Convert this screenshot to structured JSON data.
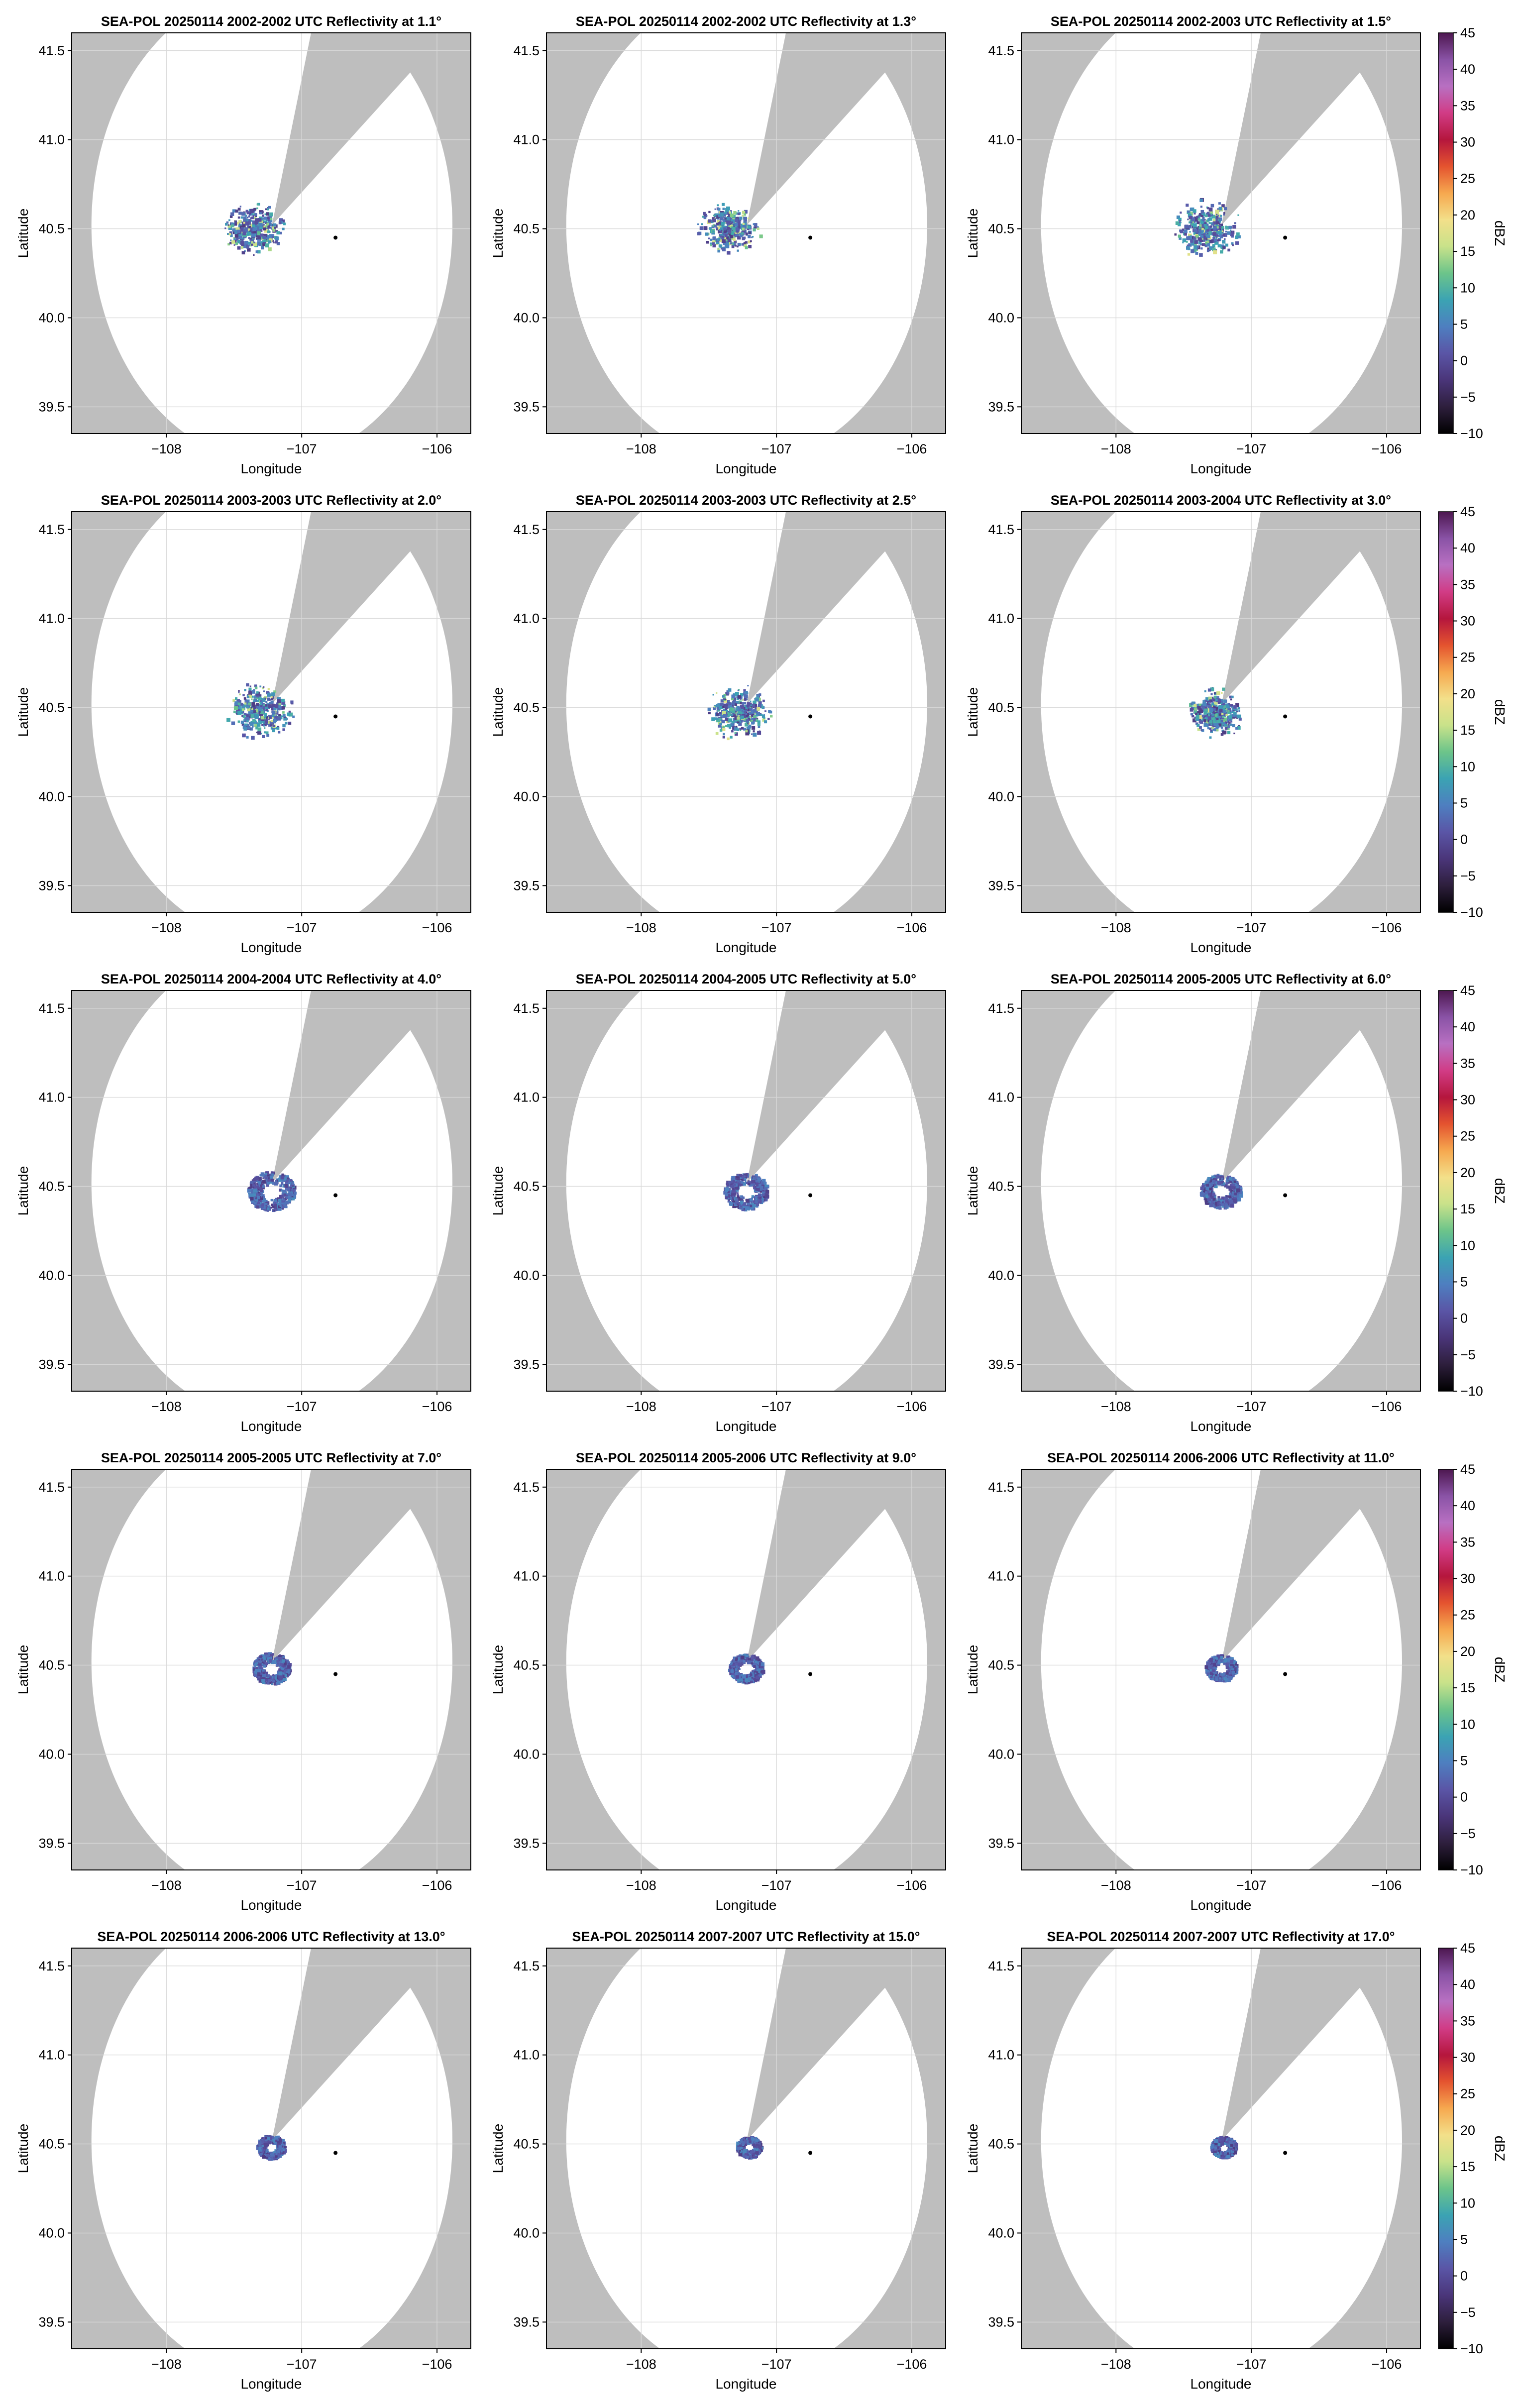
{
  "figure": {
    "colormap": {
      "label": "dBZ",
      "vmin": -10,
      "vmax": 45,
      "ticks": [
        -10,
        -5,
        0,
        5,
        10,
        15,
        20,
        25,
        30,
        35,
        40,
        45
      ],
      "stops": [
        "#000000",
        "#2e1f3d",
        "#4a3579",
        "#5a55a6",
        "#4e7fc0",
        "#3ba3b3",
        "#6cc48a",
        "#c9e28a",
        "#f3e08a",
        "#f6a84f",
        "#e4532f",
        "#b5163d",
        "#d13c86",
        "#b870c2",
        "#8a53a6",
        "#4d1750"
      ]
    },
    "colors": {
      "background_gray": "#bebebe",
      "coverage_white": "#ffffff",
      "grid": "#d9d9d9",
      "echo_main": "#5a4fa3",
      "echo_light": "#4a7fc4",
      "echo_teal": "#3aa4a4"
    }
  },
  "chart_data": [
    {
      "type": "heatmap",
      "title": "SEA-POL 20250114 2002-2002 UTC Reflectivity at 1.1°",
      "xlabel": "Longitude",
      "ylabel": "Latitude",
      "xlim": [
        -108.7,
        -105.75
      ],
      "ylim": [
        39.35,
        41.6
      ],
      "xticks": [
        -108,
        -107,
        -106
      ],
      "xtick_labels": [
        "−108",
        "−107",
        "−106"
      ],
      "yticks": [
        39.5,
        40.0,
        40.5,
        41.0,
        41.5
      ],
      "ytick_labels": [
        "39.5",
        "40.0",
        "40.5",
        "41.0",
        "41.5"
      ],
      "grid": true,
      "radar_center": [
        -107.22,
        40.52
      ],
      "coverage_radius_deg": 1.45,
      "blocked_sector_bearing_deg": [
        15,
        50
      ],
      "marker_point": [
        -106.75,
        40.45
      ],
      "echo": {
        "center": [
          -107.35,
          40.5
        ],
        "radius_deg": 0.18,
        "type": "scattered"
      },
      "colorbar": false
    },
    {
      "type": "heatmap",
      "title": "SEA-POL 20250114 2002-2002 UTC Reflectivity at 1.3°",
      "xlabel": "Longitude",
      "ylabel": "Latitude",
      "xlim": [
        -108.7,
        -105.75
      ],
      "ylim": [
        39.35,
        41.6
      ],
      "xticks": [
        -108,
        -107,
        -106
      ],
      "xtick_labels": [
        "−108",
        "−107",
        "−106"
      ],
      "yticks": [
        39.5,
        40.0,
        40.5,
        41.0,
        41.5
      ],
      "ytick_labels": [
        "39.5",
        "40.0",
        "40.5",
        "41.0",
        "41.5"
      ],
      "grid": true,
      "radar_center": [
        -107.22,
        40.52
      ],
      "coverage_radius_deg": 1.45,
      "blocked_sector_bearing_deg": [
        15,
        50
      ],
      "marker_point": [
        -106.75,
        40.45
      ],
      "echo": {
        "center": [
          -107.35,
          40.5
        ],
        "radius_deg": 0.18,
        "type": "scattered"
      },
      "colorbar": false
    },
    {
      "type": "heatmap",
      "title": "SEA-POL 20250114 2002-2003 UTC Reflectivity at 1.5°",
      "xlabel": "Longitude",
      "ylabel": "Latitude",
      "xlim": [
        -108.7,
        -105.75
      ],
      "ylim": [
        39.35,
        41.6
      ],
      "xticks": [
        -108,
        -107,
        -106
      ],
      "xtick_labels": [
        "−108",
        "−107",
        "−106"
      ],
      "yticks": [
        39.5,
        40.0,
        40.5,
        41.0,
        41.5
      ],
      "ytick_labels": [
        "39.5",
        "40.0",
        "40.5",
        "41.0",
        "41.5"
      ],
      "grid": true,
      "radar_center": [
        -107.22,
        40.52
      ],
      "coverage_radius_deg": 1.45,
      "blocked_sector_bearing_deg": [
        15,
        50
      ],
      "marker_point": [
        -106.75,
        40.45
      ],
      "echo": {
        "center": [
          -107.33,
          40.5
        ],
        "radius_deg": 0.2,
        "type": "scattered"
      },
      "colorbar": true
    },
    {
      "type": "heatmap",
      "title": "SEA-POL 20250114 2003-2003 UTC Reflectivity at 2.0°",
      "xlabel": "Longitude",
      "ylabel": "Latitude",
      "xlim": [
        -108.7,
        -105.75
      ],
      "ylim": [
        39.35,
        41.6
      ],
      "xticks": [
        -108,
        -107,
        -106
      ],
      "xtick_labels": [
        "−108",
        "−107",
        "−106"
      ],
      "yticks": [
        39.5,
        40.0,
        40.5,
        41.0,
        41.5
      ],
      "ytick_labels": [
        "39.5",
        "40.0",
        "40.5",
        "41.0",
        "41.5"
      ],
      "grid": true,
      "radar_center": [
        -107.22,
        40.52
      ],
      "coverage_radius_deg": 1.45,
      "blocked_sector_bearing_deg": [
        15,
        50
      ],
      "marker_point": [
        -106.75,
        40.45
      ],
      "echo": {
        "center": [
          -107.3,
          40.48
        ],
        "radius_deg": 0.2,
        "type": "scattered"
      },
      "colorbar": false
    },
    {
      "type": "heatmap",
      "title": "SEA-POL 20250114 2003-2003 UTC Reflectivity at 2.5°",
      "xlabel": "Longitude",
      "ylabel": "Latitude",
      "xlim": [
        -108.7,
        -105.75
      ],
      "ylim": [
        39.35,
        41.6
      ],
      "xticks": [
        -108,
        -107,
        -106
      ],
      "xtick_labels": [
        "−108",
        "−107",
        "−106"
      ],
      "yticks": [
        39.5,
        40.0,
        40.5,
        41.0,
        41.5
      ],
      "ytick_labels": [
        "39.5",
        "40.0",
        "40.5",
        "41.0",
        "41.5"
      ],
      "grid": true,
      "radar_center": [
        -107.22,
        40.52
      ],
      "coverage_radius_deg": 1.45,
      "blocked_sector_bearing_deg": [
        15,
        50
      ],
      "marker_point": [
        -106.75,
        40.45
      ],
      "echo": {
        "center": [
          -107.28,
          40.47
        ],
        "radius_deg": 0.19,
        "type": "scattered"
      },
      "colorbar": false
    },
    {
      "type": "heatmap",
      "title": "SEA-POL 20250114 2003-2004 UTC Reflectivity at 3.0°",
      "xlabel": "Longitude",
      "ylabel": "Latitude",
      "xlim": [
        -108.7,
        -105.75
      ],
      "ylim": [
        39.35,
        41.6
      ],
      "xticks": [
        -108,
        -107,
        -106
      ],
      "xtick_labels": [
        "−108",
        "−107",
        "−106"
      ],
      "yticks": [
        39.5,
        40.0,
        40.5,
        41.0,
        41.5
      ],
      "ytick_labels": [
        "39.5",
        "40.0",
        "40.5",
        "41.0",
        "41.5"
      ],
      "grid": true,
      "radar_center": [
        -107.22,
        40.52
      ],
      "coverage_radius_deg": 1.45,
      "blocked_sector_bearing_deg": [
        15,
        50
      ],
      "marker_point": [
        -106.75,
        40.45
      ],
      "echo": {
        "center": [
          -107.26,
          40.47
        ],
        "radius_deg": 0.17,
        "type": "scattered"
      },
      "colorbar": true
    },
    {
      "type": "heatmap",
      "title": "SEA-POL 20250114 2004-2004 UTC Reflectivity at 4.0°",
      "xlabel": "Longitude",
      "ylabel": "Latitude",
      "xlim": [
        -108.7,
        -105.75
      ],
      "ylim": [
        39.35,
        41.6
      ],
      "xticks": [
        -108,
        -107,
        -106
      ],
      "xtick_labels": [
        "−108",
        "−107",
        "−106"
      ],
      "yticks": [
        39.5,
        40.0,
        40.5,
        41.0,
        41.5
      ],
      "ytick_labels": [
        "39.5",
        "40.0",
        "40.5",
        "41.0",
        "41.5"
      ],
      "grid": true,
      "radar_center": [
        -107.22,
        40.52
      ],
      "coverage_radius_deg": 1.45,
      "blocked_sector_bearing_deg": [
        15,
        50
      ],
      "marker_point": [
        -106.75,
        40.45
      ],
      "echo": {
        "center": [
          -107.22,
          40.47
        ],
        "radius_deg": 0.15,
        "type": "ring"
      },
      "colorbar": false
    },
    {
      "type": "heatmap",
      "title": "SEA-POL 20250114 2004-2005 UTC Reflectivity at 5.0°",
      "xlabel": "Longitude",
      "ylabel": "Latitude",
      "xlim": [
        -108.7,
        -105.75
      ],
      "ylim": [
        39.35,
        41.6
      ],
      "xticks": [
        -108,
        -107,
        -106
      ],
      "xtick_labels": [
        "−108",
        "−107",
        "−106"
      ],
      "yticks": [
        39.5,
        40.0,
        40.5,
        41.0,
        41.5
      ],
      "ytick_labels": [
        "39.5",
        "40.0",
        "40.5",
        "41.0",
        "41.5"
      ],
      "grid": true,
      "radar_center": [
        -107.22,
        40.52
      ],
      "coverage_radius_deg": 1.45,
      "blocked_sector_bearing_deg": [
        15,
        50
      ],
      "marker_point": [
        -106.75,
        40.45
      ],
      "echo": {
        "center": [
          -107.22,
          40.47
        ],
        "radius_deg": 0.14,
        "type": "ring"
      },
      "colorbar": false
    },
    {
      "type": "heatmap",
      "title": "SEA-POL 20250114 2005-2005 UTC Reflectivity at 6.0°",
      "xlabel": "Longitude",
      "ylabel": "Latitude",
      "xlim": [
        -108.7,
        -105.75
      ],
      "ylim": [
        39.35,
        41.6
      ],
      "xticks": [
        -108,
        -107,
        -106
      ],
      "xtick_labels": [
        "−108",
        "−107",
        "−106"
      ],
      "yticks": [
        39.5,
        40.0,
        40.5,
        41.0,
        41.5
      ],
      "ytick_labels": [
        "39.5",
        "40.0",
        "40.5",
        "41.0",
        "41.5"
      ],
      "grid": true,
      "radar_center": [
        -107.22,
        40.52
      ],
      "coverage_radius_deg": 1.45,
      "blocked_sector_bearing_deg": [
        15,
        50
      ],
      "marker_point": [
        -106.75,
        40.45
      ],
      "echo": {
        "center": [
          -107.22,
          40.47
        ],
        "radius_deg": 0.13,
        "type": "ring"
      },
      "colorbar": true
    },
    {
      "type": "heatmap",
      "title": "SEA-POL 20250114 2005-2005 UTC Reflectivity at 7.0°",
      "xlabel": "Longitude",
      "ylabel": "Latitude",
      "xlim": [
        -108.7,
        -105.75
      ],
      "ylim": [
        39.35,
        41.6
      ],
      "xticks": [
        -108,
        -107,
        -106
      ],
      "xtick_labels": [
        "−108",
        "−107",
        "−106"
      ],
      "yticks": [
        39.5,
        40.0,
        40.5,
        41.0,
        41.5
      ],
      "ytick_labels": [
        "39.5",
        "40.0",
        "40.5",
        "41.0",
        "41.5"
      ],
      "grid": true,
      "radar_center": [
        -107.22,
        40.52
      ],
      "coverage_radius_deg": 1.45,
      "blocked_sector_bearing_deg": [
        15,
        50
      ],
      "marker_point": [
        -106.75,
        40.45
      ],
      "echo": {
        "center": [
          -107.22,
          40.48
        ],
        "radius_deg": 0.12,
        "type": "ring"
      },
      "colorbar": false
    },
    {
      "type": "heatmap",
      "title": "SEA-POL 20250114 2005-2006 UTC Reflectivity at 9.0°",
      "xlabel": "Longitude",
      "ylabel": "Latitude",
      "xlim": [
        -108.7,
        -105.75
      ],
      "ylim": [
        39.35,
        41.6
      ],
      "xticks": [
        -108,
        -107,
        -106
      ],
      "xtick_labels": [
        "−108",
        "−107",
        "−106"
      ],
      "yticks": [
        39.5,
        40.0,
        40.5,
        41.0,
        41.5
      ],
      "ytick_labels": [
        "39.5",
        "40.0",
        "40.5",
        "41.0",
        "41.5"
      ],
      "grid": true,
      "radar_center": [
        -107.22,
        40.52
      ],
      "coverage_radius_deg": 1.45,
      "blocked_sector_bearing_deg": [
        15,
        50
      ],
      "marker_point": [
        -106.75,
        40.45
      ],
      "echo": {
        "center": [
          -107.22,
          40.48
        ],
        "radius_deg": 0.11,
        "type": "ring"
      },
      "colorbar": false
    },
    {
      "type": "heatmap",
      "title": "SEA-POL 20250114 2006-2006 UTC Reflectivity at 11.0°",
      "xlabel": "Longitude",
      "ylabel": "Latitude",
      "xlim": [
        -108.7,
        -105.75
      ],
      "ylim": [
        39.35,
        41.6
      ],
      "xticks": [
        -108,
        -107,
        -106
      ],
      "xtick_labels": [
        "−108",
        "−107",
        "−106"
      ],
      "yticks": [
        39.5,
        40.0,
        40.5,
        41.0,
        41.5
      ],
      "ytick_labels": [
        "39.5",
        "40.0",
        "40.5",
        "41.0",
        "41.5"
      ],
      "grid": true,
      "radar_center": [
        -107.22,
        40.52
      ],
      "coverage_radius_deg": 1.45,
      "blocked_sector_bearing_deg": [
        15,
        50
      ],
      "marker_point": [
        -106.75,
        40.45
      ],
      "echo": {
        "center": [
          -107.22,
          40.48
        ],
        "radius_deg": 0.1,
        "type": "ring"
      },
      "colorbar": true
    },
    {
      "type": "heatmap",
      "title": "SEA-POL 20250114 2006-2006 UTC Reflectivity at 13.0°",
      "xlabel": "Longitude",
      "ylabel": "Latitude",
      "xlim": [
        -108.7,
        -105.75
      ],
      "ylim": [
        39.35,
        41.6
      ],
      "xticks": [
        -108,
        -107,
        -106
      ],
      "xtick_labels": [
        "−108",
        "−107",
        "−106"
      ],
      "yticks": [
        39.5,
        40.0,
        40.5,
        41.0,
        41.5
      ],
      "ytick_labels": [
        "39.5",
        "40.0",
        "40.5",
        "41.0",
        "41.5"
      ],
      "grid": true,
      "radar_center": [
        -107.22,
        40.52
      ],
      "coverage_radius_deg": 1.45,
      "blocked_sector_bearing_deg": [
        15,
        50
      ],
      "marker_point": [
        -106.75,
        40.45
      ],
      "echo": {
        "center": [
          -107.22,
          40.48
        ],
        "radius_deg": 0.09,
        "type": "ring"
      },
      "colorbar": false
    },
    {
      "type": "heatmap",
      "title": "SEA-POL 20250114 2007-2007 UTC Reflectivity at 15.0°",
      "xlabel": "Longitude",
      "ylabel": "Latitude",
      "xlim": [
        -108.7,
        -105.75
      ],
      "ylim": [
        39.35,
        41.6
      ],
      "xticks": [
        -108,
        -107,
        -106
      ],
      "xtick_labels": [
        "−108",
        "−107",
        "−106"
      ],
      "yticks": [
        39.5,
        40.0,
        40.5,
        41.0,
        41.5
      ],
      "ytick_labels": [
        "39.5",
        "40.0",
        "40.5",
        "41.0",
        "41.5"
      ],
      "grid": true,
      "radar_center": [
        -107.22,
        40.52
      ],
      "coverage_radius_deg": 1.45,
      "blocked_sector_bearing_deg": [
        15,
        50
      ],
      "marker_point": [
        -106.75,
        40.45
      ],
      "echo": {
        "center": [
          -107.2,
          40.48
        ],
        "radius_deg": 0.08,
        "type": "ring"
      },
      "colorbar": false
    },
    {
      "type": "heatmap",
      "title": "SEA-POL 20250114 2007-2007 UTC Reflectivity at 17.0°",
      "xlabel": "Longitude",
      "ylabel": "Latitude",
      "xlim": [
        -108.7,
        -105.75
      ],
      "ylim": [
        39.35,
        41.6
      ],
      "xticks": [
        -108,
        -107,
        -106
      ],
      "xtick_labels": [
        "−108",
        "−107",
        "−106"
      ],
      "yticks": [
        39.5,
        40.0,
        40.5,
        41.0,
        41.5
      ],
      "ytick_labels": [
        "39.5",
        "40.0",
        "40.5",
        "41.0",
        "41.5"
      ],
      "grid": true,
      "radar_center": [
        -107.22,
        40.52
      ],
      "coverage_radius_deg": 1.45,
      "blocked_sector_bearing_deg": [
        15,
        50
      ],
      "marker_point": [
        -106.75,
        40.45
      ],
      "echo": {
        "center": [
          -107.2,
          40.48
        ],
        "radius_deg": 0.08,
        "type": "ring"
      },
      "colorbar": true
    }
  ]
}
